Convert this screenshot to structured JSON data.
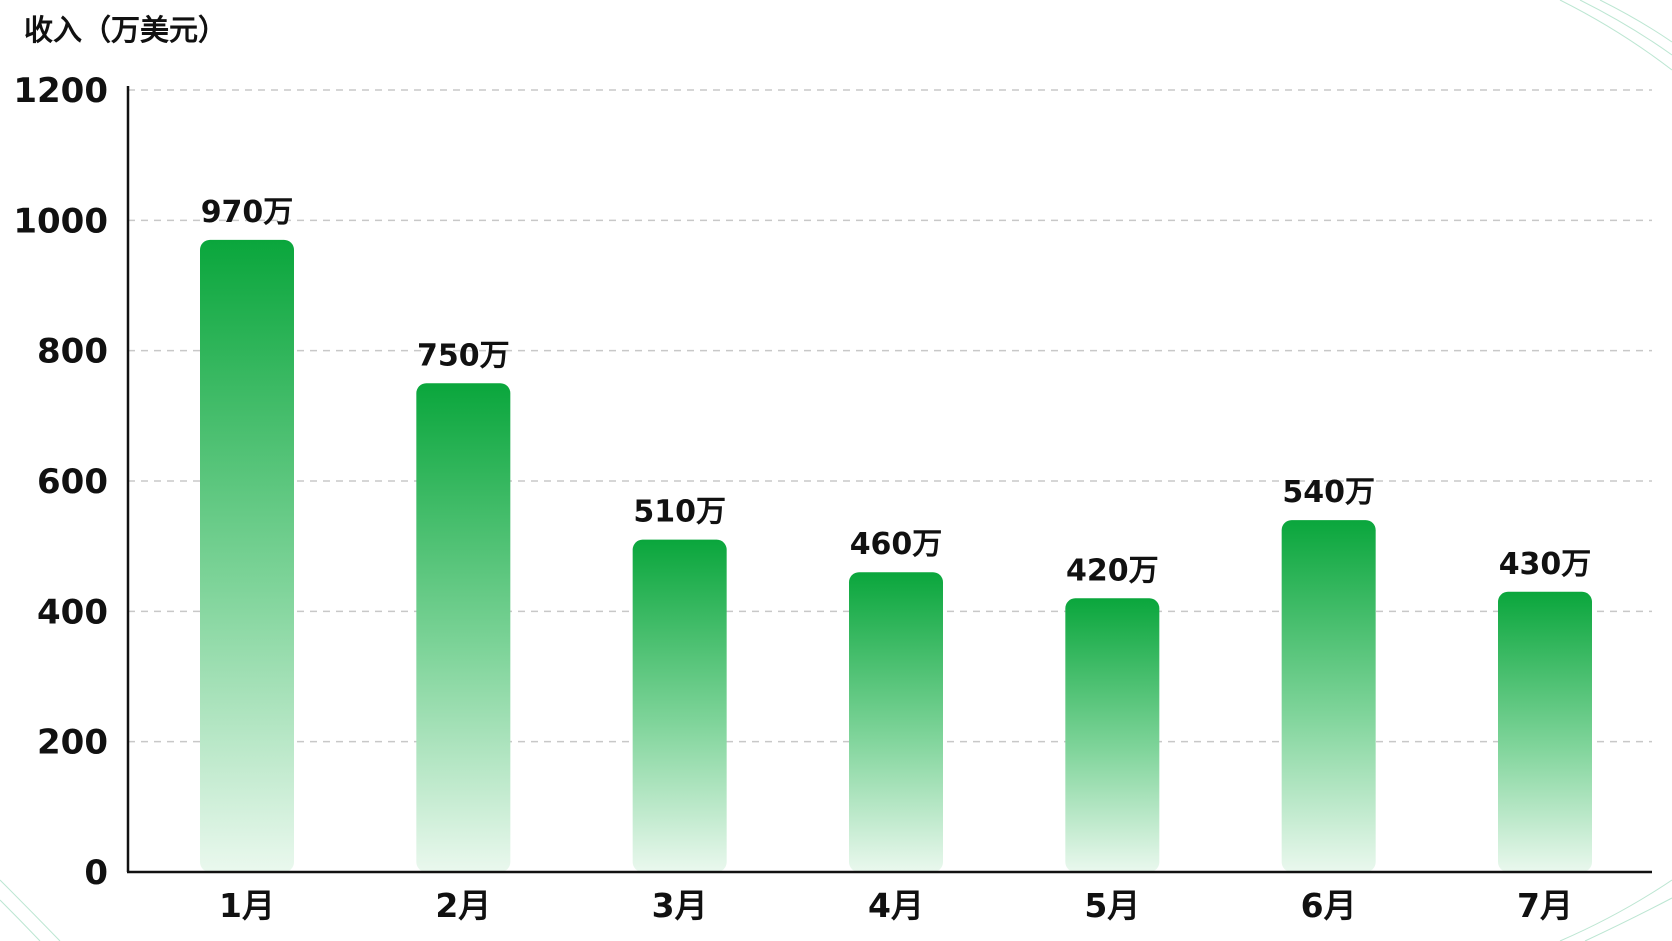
{
  "chart_data": {
    "type": "bar",
    "ylabel": "收入（万美元）",
    "categories": [
      "1月",
      "2月",
      "3月",
      "4月",
      "5月",
      "6月",
      "7月"
    ],
    "values": [
      970,
      750,
      510,
      460,
      420,
      540,
      430
    ],
    "data_labels": [
      "970万",
      "750万",
      "510万",
      "460万",
      "420万",
      "540万",
      "430万"
    ],
    "yticks": [
      "0",
      "200",
      "400",
      "600",
      "800",
      "1000",
      "1200"
    ],
    "ylim": [
      0,
      1200
    ],
    "grid": true,
    "legend": "none",
    "bar_color_top": "#0aa63c",
    "bar_color_bottom": "#eaf8ee"
  }
}
